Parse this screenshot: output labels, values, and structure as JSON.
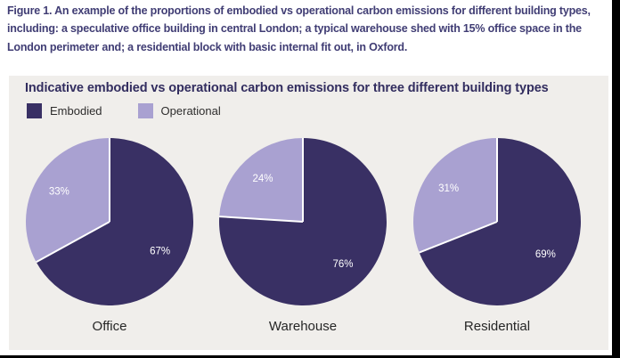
{
  "figure_caption": "Figure 1. An example of the proportions of embodied vs operational carbon emissions for different building types, including: a speculative office building in central London; a typical warehouse shed with 15% office space in the London perimeter and; a residential block with basic internal fit out, in Oxford.",
  "panel": {
    "background": "#f0eeeb"
  },
  "legend": {
    "items": [
      {
        "label": "Embodied",
        "color": "#393064"
      },
      {
        "label": "Operational",
        "color": "#a9a1d1"
      }
    ]
  },
  "chart_data": {
    "type": "pie",
    "title": "Indicative embodied vs operational carbon emissions for three different building types",
    "legend_position": "top-left",
    "orientation": "slices start at 12 o'clock, drawn clockwise, Embodied first",
    "colors": {
      "Embodied": "#393064",
      "Operational": "#a9a1d1"
    },
    "slice_label_color": "#ffffff",
    "charts": [
      {
        "category": "Office",
        "slices": [
          {
            "name": "Embodied",
            "value": 67,
            "label": "67%"
          },
          {
            "name": "Operational",
            "value": 33,
            "label": "33%"
          }
        ]
      },
      {
        "category": "Warehouse",
        "slices": [
          {
            "name": "Embodied",
            "value": 76,
            "label": "76%"
          },
          {
            "name": "Operational",
            "value": 24,
            "label": "24%"
          }
        ]
      },
      {
        "category": "Residential",
        "slices": [
          {
            "name": "Embodied",
            "value": 69,
            "label": "69%"
          },
          {
            "name": "Operational",
            "value": 31,
            "label": "31%"
          }
        ]
      }
    ]
  },
  "colors": {
    "caption_text": "#403d74",
    "title_text": "#322d5f",
    "category_text": "#262626",
    "panel_background": "#f0eeeb",
    "page_background": "#ffffff",
    "frame": "#000000"
  }
}
